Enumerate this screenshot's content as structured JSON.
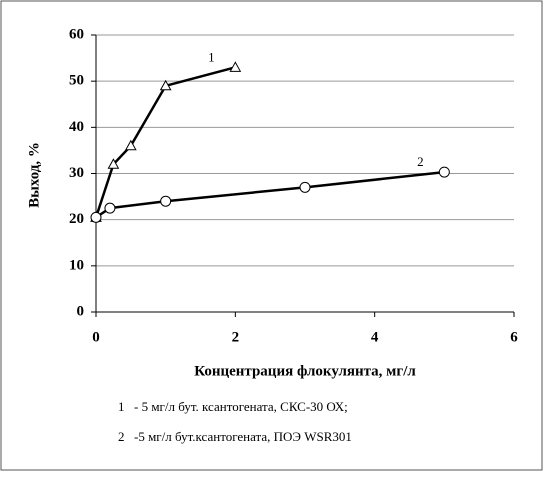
{
  "chart_data": {
    "type": "line",
    "y_label": "Выход, %",
    "x_label": "Концентрация флокулянта, мг/л",
    "xlim": [
      0,
      6
    ],
    "xticks": [
      0,
      2,
      4,
      6
    ],
    "ylim": [
      0,
      60
    ],
    "yticks": [
      0,
      10,
      20,
      30,
      40,
      50,
      60
    ],
    "grid": true,
    "series": [
      {
        "name": "1",
        "description": "- 5 мг/л бут. ксантогената, СКС-30 ОХ;",
        "marker": "triangle",
        "color": "#000000",
        "x": [
          0,
          0.25,
          0.5,
          1,
          2
        ],
        "values": [
          20.5,
          32,
          36,
          49,
          53
        ]
      },
      {
        "name": "2",
        "description": "-5 мг/л  бут.ксантогената, ПОЭ WSR301",
        "marker": "circle",
        "color": "#000000",
        "x": [
          0,
          0.2,
          1,
          3,
          5
        ],
        "values": [
          20.5,
          22.5,
          24,
          27,
          30.3
        ]
      }
    ]
  }
}
